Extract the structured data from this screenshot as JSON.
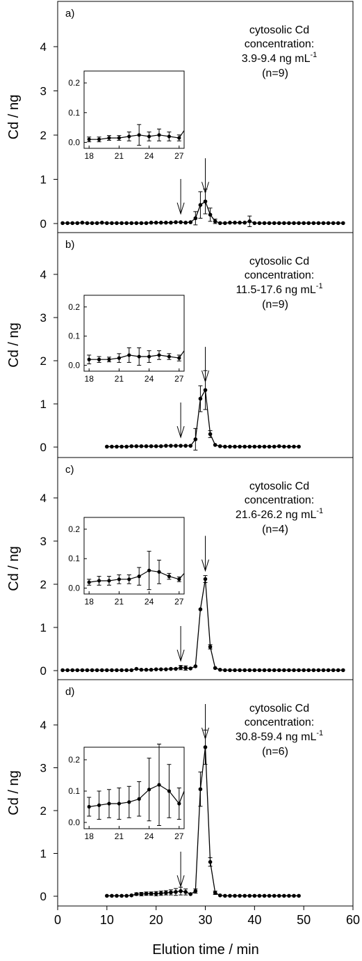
{
  "figure": {
    "xlabel": "Elution time / min",
    "x_ticks": [
      "0",
      "10",
      "20",
      "30",
      "40",
      "50",
      "60"
    ]
  },
  "chart_data": [
    {
      "type": "line",
      "panel_label": "a)",
      "annotation": [
        "cytosolic Cd",
        "concentration:",
        "3.9-9.4 ng mL",
        "(n=9)"
      ],
      "annotation_superscript": "-1",
      "ylabel": "Cd / ng",
      "xlim": [
        0,
        60
      ],
      "ylim": [
        -0.2,
        4.8
      ],
      "y_ticks": [
        "0",
        "1",
        "2",
        "3",
        "4"
      ],
      "arrows_at_x": [
        25,
        30
      ],
      "x": [
        1,
        2,
        3,
        4,
        5,
        6,
        7,
        8,
        9,
        10,
        11,
        12,
        13,
        14,
        15,
        16,
        17,
        18,
        19,
        20,
        21,
        22,
        23,
        24,
        25,
        26,
        27,
        28,
        29,
        30,
        31,
        32,
        33,
        34,
        35,
        36,
        37,
        38,
        39,
        40,
        41,
        42,
        43,
        44,
        45,
        46,
        47,
        48,
        49,
        50,
        51,
        52,
        53,
        54,
        55,
        56,
        57,
        58
      ],
      "y": [
        0.01,
        0.01,
        0.01,
        0.01,
        0.02,
        0.01,
        0.01,
        0.01,
        0.02,
        0.01,
        0.01,
        0.01,
        0.01,
        0.01,
        0.01,
        0.01,
        0.01,
        0.01,
        0.02,
        0.02,
        0.02,
        0.02,
        0.02,
        0.03,
        0.03,
        0.02,
        0.03,
        0.12,
        0.42,
        0.5,
        0.2,
        0.05,
        0.01,
        0.01,
        0.02,
        0.02,
        0.02,
        0.02,
        0.05,
        0.01,
        0.01,
        0.01,
        0.01,
        0.01,
        0.01,
        0.01,
        0.01,
        0.01,
        0.01,
        0.01,
        0.01,
        0.01,
        0.01,
        0.01,
        0.01,
        0.01,
        0.01,
        0.01
      ],
      "error_bars": [
        {
          "x": 28,
          "err": 0.15
        },
        {
          "x": 29,
          "err": 0.3
        },
        {
          "x": 30,
          "err": 0.28
        },
        {
          "x": 31,
          "err": 0.15
        },
        {
          "x": 32,
          "err": 0.05
        },
        {
          "x": 39,
          "err": 0.12
        }
      ],
      "inset": {
        "xlim": [
          17.5,
          27.5
        ],
        "ylim": [
          -0.02,
          0.24
        ],
        "x_ticks": [
          "18",
          "21",
          "24",
          "27"
        ],
        "y_ticks": [
          "0.0",
          "0.1",
          "0.2"
        ],
        "x": [
          18,
          19,
          20,
          21,
          22,
          23,
          24,
          25,
          26,
          27
        ],
        "y": [
          0.01,
          0.01,
          0.015,
          0.015,
          0.02,
          0.025,
          0.02,
          0.025,
          0.02,
          0.015
        ],
        "err": [
          0.008,
          0.008,
          0.008,
          0.008,
          0.015,
          0.035,
          0.015,
          0.02,
          0.015,
          0.01
        ],
        "tail": 0.04
      }
    },
    {
      "type": "line",
      "panel_label": "b)",
      "annotation": [
        "cytosolic Cd",
        "concentration:",
        "11.5-17.6 ng mL",
        "(n=9)"
      ],
      "annotation_superscript": "-1",
      "ylabel": "Cd / ng",
      "xlim": [
        0,
        60
      ],
      "ylim": [
        -0.2,
        4.8
      ],
      "y_ticks": [
        "0",
        "1",
        "2",
        "3",
        "4"
      ],
      "arrows_at_x": [
        25,
        30
      ],
      "x": [
        10,
        11,
        12,
        13,
        14,
        15,
        16,
        17,
        18,
        19,
        20,
        21,
        22,
        23,
        24,
        25,
        26,
        27,
        28,
        29,
        30,
        31,
        32,
        33,
        34,
        35,
        36,
        37,
        38,
        39,
        40,
        41,
        42,
        43,
        44,
        45,
        46,
        47,
        48,
        49
      ],
      "y": [
        0.01,
        0.01,
        0.01,
        0.01,
        0.01,
        0.02,
        0.02,
        0.02,
        0.02,
        0.02,
        0.02,
        0.02,
        0.03,
        0.03,
        0.03,
        0.03,
        0.03,
        0.03,
        0.18,
        1.12,
        1.32,
        0.3,
        0.05,
        0.02,
        0.01,
        0.01,
        0.01,
        0.01,
        0.01,
        0.01,
        0.01,
        0.01,
        0.01,
        0.01,
        0.01,
        0.02,
        0.01,
        0.01,
        0.01,
        0.01
      ],
      "error_bars": [
        {
          "x": 28,
          "err": 0.25
        },
        {
          "x": 29,
          "err": 0.3
        },
        {
          "x": 30,
          "err": 0.45
        },
        {
          "x": 31,
          "err": 0.08
        }
      ],
      "inset": {
        "xlim": [
          17.5,
          27.5
        ],
        "ylim": [
          -0.02,
          0.24
        ],
        "x_ticks": [
          "18",
          "21",
          "24",
          "27"
        ],
        "y_ticks": [
          "0.0",
          "0.1",
          "0.2"
        ],
        "x": [
          18,
          19,
          20,
          21,
          22,
          23,
          24,
          25,
          26,
          27
        ],
        "y": [
          0.02,
          0.02,
          0.02,
          0.025,
          0.035,
          0.03,
          0.03,
          0.035,
          0.03,
          0.025
        ],
        "err": [
          0.015,
          0.01,
          0.008,
          0.015,
          0.025,
          0.03,
          0.02,
          0.015,
          0.01,
          0.01
        ],
        "tail": 0.05
      }
    },
    {
      "type": "line",
      "panel_label": "c)",
      "annotation": [
        "cytosolic Cd",
        "concentration:",
        "21.6-26.2 ng mL",
        "(n=4)"
      ],
      "annotation_superscript": "-1",
      "ylabel": "Cd / ng",
      "xlim": [
        0,
        60
      ],
      "ylim": [
        -0.2,
        4.8
      ],
      "y_ticks": [
        "0",
        "1",
        "2",
        "3",
        "4"
      ],
      "arrows_at_x": [
        25,
        30
      ],
      "x": [
        1,
        2,
        3,
        4,
        5,
        6,
        7,
        8,
        9,
        10,
        11,
        12,
        13,
        14,
        15,
        16,
        17,
        18,
        19,
        20,
        21,
        22,
        23,
        24,
        25,
        26,
        27,
        28,
        29,
        30,
        31,
        32,
        33,
        34,
        35,
        36,
        37,
        38,
        39,
        40,
        41,
        42,
        43,
        44,
        45,
        46,
        47,
        48,
        49,
        50,
        51,
        52,
        53,
        54,
        55,
        56,
        57,
        58
      ],
      "y": [
        0.01,
        0.01,
        0.01,
        0.01,
        0.01,
        0.01,
        0.01,
        0.01,
        0.01,
        0.01,
        0.01,
        0.01,
        0.01,
        0.01,
        0.01,
        0.04,
        0.02,
        0.02,
        0.02,
        0.03,
        0.03,
        0.03,
        0.04,
        0.04,
        0.07,
        0.06,
        0.05,
        0.1,
        1.42,
        2.12,
        0.55,
        0.06,
        0.02,
        0.01,
        0.01,
        0.01,
        0.01,
        0.01,
        0.01,
        0.01,
        0.01,
        0.01,
        0.01,
        0.01,
        0.01,
        0.01,
        0.01,
        0.01,
        0.01,
        0.01,
        0.01,
        0.01,
        0.01,
        0.01,
        0.01,
        0.01,
        0.01,
        0.01
      ],
      "error_bars": [
        {
          "x": 25,
          "err": 0.05
        },
        {
          "x": 26,
          "err": 0.05
        },
        {
          "x": 30,
          "err": 0.08
        },
        {
          "x": 31,
          "err": 0.05
        }
      ],
      "inset": {
        "xlim": [
          17.5,
          27.5
        ],
        "ylim": [
          -0.02,
          0.24
        ],
        "x_ticks": [
          "18",
          "21",
          "24",
          "27"
        ],
        "y_ticks": [
          "0.0",
          "0.1",
          "0.2"
        ],
        "x": [
          18,
          19,
          20,
          21,
          22,
          23,
          24,
          25,
          26,
          27
        ],
        "y": [
          0.02,
          0.025,
          0.025,
          0.03,
          0.03,
          0.04,
          0.06,
          0.055,
          0.04,
          0.03
        ],
        "err": [
          0.01,
          0.015,
          0.015,
          0.015,
          0.015,
          0.03,
          0.065,
          0.04,
          0.01,
          0.008
        ],
        "tail": 0.05
      }
    },
    {
      "type": "line",
      "panel_label": "d)",
      "annotation": [
        "cytosolic Cd",
        "concentration:",
        "30.8-59.4 ng mL",
        "(n=6)"
      ],
      "annotation_superscript": "-1",
      "ylabel": "Cd / ng",
      "xlim": [
        0,
        60
      ],
      "ylim": [
        -0.2,
        4.8
      ],
      "y_ticks": [
        "0",
        "1",
        "2",
        "3",
        "4"
      ],
      "arrows_at_x": [
        25,
        30
      ],
      "x": [
        10,
        11,
        12,
        13,
        14,
        15,
        16,
        17,
        18,
        19,
        20,
        21,
        22,
        23,
        24,
        25,
        26,
        27,
        28,
        29,
        30,
        31,
        32,
        33,
        34,
        35,
        36,
        37,
        38,
        39,
        40,
        41,
        42,
        43,
        44,
        45,
        46,
        47,
        48,
        49
      ],
      "y": [
        0.01,
        0.01,
        0.01,
        0.01,
        0.01,
        0.02,
        0.05,
        0.05,
        0.06,
        0.06,
        0.06,
        0.07,
        0.08,
        0.09,
        0.1,
        0.12,
        0.1,
        0.05,
        0.12,
        2.5,
        3.48,
        0.8,
        0.08,
        0.02,
        0.01,
        0.01,
        0.01,
        0.01,
        0.01,
        0.01,
        0.01,
        0.01,
        0.01,
        0.01,
        0.01,
        0.01,
        0.01,
        0.01,
        0.01,
        0.01
      ],
      "error_bars": [
        {
          "x": 16,
          "err": 0.03
        },
        {
          "x": 17,
          "err": 0.04
        },
        {
          "x": 18,
          "err": 0.04
        },
        {
          "x": 19,
          "err": 0.04
        },
        {
          "x": 20,
          "err": 0.05
        },
        {
          "x": 21,
          "err": 0.05
        },
        {
          "x": 22,
          "err": 0.05
        },
        {
          "x": 23,
          "err": 0.06
        },
        {
          "x": 24,
          "err": 0.08
        },
        {
          "x": 25,
          "err": 0.09
        },
        {
          "x": 26,
          "err": 0.07
        },
        {
          "x": 28,
          "err": 0.05
        },
        {
          "x": 29,
          "err": 0.4
        },
        {
          "x": 30,
          "err": 0.4
        },
        {
          "x": 31,
          "err": 0.1
        },
        {
          "x": 32,
          "err": 0.04
        }
      ],
      "inset": {
        "xlim": [
          17.5,
          27.5
        ],
        "ylim": [
          -0.02,
          0.24
        ],
        "x_ticks": [
          "18",
          "21",
          "24",
          "27"
        ],
        "y_ticks": [
          "0.0",
          "0.1",
          "0.2"
        ],
        "x": [
          18,
          19,
          20,
          21,
          22,
          23,
          24,
          25,
          26,
          27
        ],
        "y": [
          0.05,
          0.055,
          0.06,
          0.06,
          0.065,
          0.075,
          0.105,
          0.12,
          0.1,
          0.06
        ],
        "err": [
          0.03,
          0.045,
          0.045,
          0.05,
          0.05,
          0.055,
          0.1,
          0.13,
          0.085,
          0.05
        ],
        "tail": 0.1
      }
    }
  ]
}
